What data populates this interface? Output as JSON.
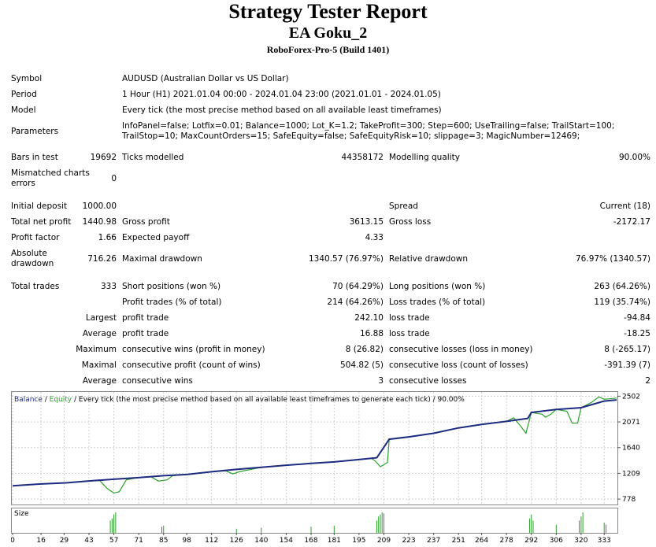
{
  "header": {
    "title": "Strategy Tester Report",
    "ea_name": "EA Goku_2",
    "server": "RoboForex-Pro-5 (Build 1401)"
  },
  "info": {
    "symbol_label": "Symbol",
    "symbol_value": "AUDUSD (Australian Dollar vs US Dollar)",
    "period_label": "Period",
    "period_value": "1 Hour (H1) 2021.01.04 00:00 - 2024.01.04 23:00 (2021.01.01 - 2024.01.05)",
    "model_label": "Model",
    "model_value": "Every tick (the most precise method based on all available least timeframes)",
    "parameters_label": "Parameters",
    "parameters_value": "InfoPanel=false; Lotfix=0.01; Balance=1000; Lot_K=1.2; TakeProfit=300; Step=600; UseTrailing=false; TrailStart=100; TrailStop=10; MaxCountOrders=15; SafeEquity=false; SafeEquityRisk=10; slippage=3; MagicNumber=12469;"
  },
  "stats": {
    "bars_label": "Bars in test",
    "bars_value": "19692",
    "ticks_label": "Ticks modelled",
    "ticks_value": "44358172",
    "quality_label": "Modelling quality",
    "quality_value": "90.00%",
    "mismatch_label": "Mismatched charts errors",
    "mismatch_value": "0",
    "deposit_label": "Initial deposit",
    "deposit_value": "1000.00",
    "spread_label": "Spread",
    "spread_value": "Current (18)",
    "netprofit_label": "Total net profit",
    "netprofit_value": "1440.98",
    "grossprofit_label": "Gross profit",
    "grossprofit_value": "3613.15",
    "grossloss_label": "Gross loss",
    "grossloss_value": "-2172.17",
    "pf_label": "Profit factor",
    "pf_value": "1.66",
    "payoff_label": "Expected payoff",
    "payoff_value": "4.33",
    "absdd_label": "Absolute drawdown",
    "absdd_value": "716.26",
    "maxdd_label": "Maximal drawdown",
    "maxdd_value": "1340.57 (76.97%)",
    "reldd_label": "Relative drawdown",
    "reldd_value": "76.97% (1340.57)",
    "trades_label": "Total trades",
    "trades_value": "333",
    "short_label": "Short positions (won %)",
    "short_value": "70 (64.29%)",
    "long_label": "Long positions (won %)",
    "long_value": "263 (64.26%)",
    "ptrades_label": "Profit trades (% of total)",
    "ptrades_value": "214 (64.26%)",
    "ltrades_label": "Loss trades (% of total)",
    "ltrades_value": "119 (35.74%)",
    "largest_label": "Largest",
    "largest_profit_label": "profit trade",
    "largest_profit_value": "242.10",
    "largest_loss_label": "loss trade",
    "largest_loss_value": "-94.84",
    "average_label": "Average",
    "average_profit_label": "profit trade",
    "average_profit_value": "16.88",
    "average_loss_label": "loss trade",
    "average_loss_value": "-18.25",
    "maximum_label": "Maximum",
    "max_wins_label": "consecutive wins (profit in money)",
    "max_wins_value": "8 (26.82)",
    "max_losses_label": "consecutive losses (loss in money)",
    "max_losses_value": "8 (-265.17)",
    "maximal_label": "Maximal",
    "maximal_profit_label": "consecutive profit (count of wins)",
    "maximal_profit_value": "504.82 (5)",
    "maximal_loss_label": "consecutive loss (count of losses)",
    "maximal_loss_value": "-391.39 (7)",
    "avgcons_label": "Average",
    "avg_wins_label": "consecutive wins",
    "avg_wins_value": "3",
    "avg_losses_label": "consecutive losses",
    "avg_losses_value": "2"
  },
  "chart_data": {
    "type": "line",
    "legend": {
      "balance": "Balance",
      "sep": " / ",
      "equity": "Equity",
      "rest": " / Every tick (the most precise method based on all available least timeframes to generate each tick) / 90.00%"
    },
    "size_label": "Size",
    "yticks": [
      "2502",
      "2071",
      "1640",
      "1209",
      "778"
    ],
    "yvalues": [
      2502,
      2071,
      1640,
      1209,
      778
    ],
    "ylim": [
      700,
      2560
    ],
    "xticks": [
      "0",
      "16",
      "29",
      "43",
      "57",
      "71",
      "85",
      "98",
      "112",
      "126",
      "140",
      "154",
      "168",
      "181",
      "195",
      "209",
      "223",
      "237",
      "251",
      "264",
      "278",
      "292",
      "306",
      "320",
      "333"
    ],
    "xlim": [
      0,
      340
    ],
    "balance": [
      [
        0,
        1000
      ],
      [
        15,
        1030
      ],
      [
        30,
        1050
      ],
      [
        45,
        1085
      ],
      [
        57,
        1110
      ],
      [
        70,
        1135
      ],
      [
        85,
        1170
      ],
      [
        98,
        1190
      ],
      [
        112,
        1235
      ],
      [
        126,
        1275
      ],
      [
        140,
        1310
      ],
      [
        154,
        1345
      ],
      [
        168,
        1375
      ],
      [
        181,
        1400
      ],
      [
        195,
        1440
      ],
      [
        205,
        1470
      ],
      [
        212,
        1780
      ],
      [
        223,
        1820
      ],
      [
        237,
        1880
      ],
      [
        251,
        1970
      ],
      [
        264,
        2030
      ],
      [
        278,
        2080
      ],
      [
        290,
        2130
      ],
      [
        292,
        2230
      ],
      [
        306,
        2280
      ],
      [
        320,
        2310
      ],
      [
        333,
        2420
      ],
      [
        340,
        2440
      ]
    ],
    "equity": [
      [
        0,
        1000
      ],
      [
        15,
        1030
      ],
      [
        30,
        1050
      ],
      [
        45,
        1085
      ],
      [
        49,
        1090
      ],
      [
        53,
        960
      ],
      [
        57,
        880
      ],
      [
        60,
        900
      ],
      [
        64,
        1100
      ],
      [
        70,
        1135
      ],
      [
        78,
        1150
      ],
      [
        82,
        1080
      ],
      [
        87,
        1100
      ],
      [
        90,
        1170
      ],
      [
        98,
        1190
      ],
      [
        112,
        1235
      ],
      [
        120,
        1250
      ],
      [
        124,
        1200
      ],
      [
        128,
        1240
      ],
      [
        140,
        1310
      ],
      [
        154,
        1345
      ],
      [
        168,
        1375
      ],
      [
        181,
        1400
      ],
      [
        195,
        1440
      ],
      [
        202,
        1460
      ],
      [
        204,
        1420
      ],
      [
        207,
        1320
      ],
      [
        211,
        1390
      ],
      [
        212,
        1780
      ],
      [
        223,
        1820
      ],
      [
        237,
        1880
      ],
      [
        251,
        1970
      ],
      [
        264,
        2030
      ],
      [
        278,
        2080
      ],
      [
        282,
        2140
      ],
      [
        286,
        2000
      ],
      [
        289,
        1880
      ],
      [
        292,
        2230
      ],
      [
        298,
        2200
      ],
      [
        300,
        2150
      ],
      [
        303,
        2200
      ],
      [
        306,
        2280
      ],
      [
        312,
        2250
      ],
      [
        315,
        2050
      ],
      [
        318,
        2050
      ],
      [
        320,
        2310
      ],
      [
        326,
        2400
      ],
      [
        330,
        2490
      ],
      [
        333,
        2450
      ],
      [
        340,
        2470
      ]
    ],
    "size_bars": [
      [
        55,
        0.6
      ],
      [
        56,
        0.7
      ],
      [
        57,
        0.9
      ],
      [
        58,
        1.0
      ],
      [
        84,
        0.3
      ],
      [
        85,
        0.35
      ],
      [
        126,
        0.2
      ],
      [
        140,
        0.25
      ],
      [
        168,
        0.3
      ],
      [
        181,
        0.35
      ],
      [
        205,
        0.6
      ],
      [
        206,
        0.8
      ],
      [
        207,
        0.9
      ],
      [
        208,
        1.0
      ],
      [
        209,
        0.95
      ],
      [
        291,
        0.7
      ],
      [
        292,
        0.9
      ],
      [
        293,
        0.6
      ],
      [
        306,
        0.4
      ],
      [
        319,
        0.6
      ],
      [
        320,
        0.8
      ],
      [
        321,
        1.0
      ],
      [
        333,
        0.5
      ],
      [
        334,
        0.4
      ]
    ]
  },
  "colors": {
    "balance": "#1c2a80",
    "equity": "#2aa02a",
    "grid": "#cfcfcf",
    "size": "#2aa02a"
  }
}
